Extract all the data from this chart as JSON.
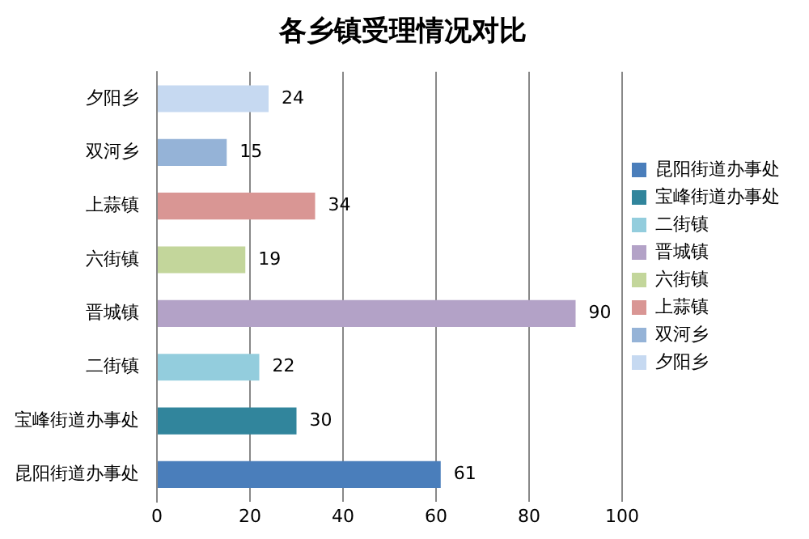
{
  "chart_data": {
    "type": "bar",
    "orientation": "horizontal",
    "title": "各乡镇受理情况对比",
    "categories": [
      "夕阳乡",
      "双河乡",
      "上蒜镇",
      "六街镇",
      "晋城镇",
      "二街镇",
      "宝峰街道办事处",
      "昆阳街道办事处"
    ],
    "series": [
      {
        "name": "昆阳街道办事处",
        "color": "#4a7ebb",
        "values": [
          null,
          null,
          null,
          null,
          null,
          null,
          null,
          61
        ]
      },
      {
        "name": "宝峰街道办事处",
        "color": "#31859c",
        "values": [
          null,
          null,
          null,
          null,
          null,
          null,
          30,
          null
        ]
      },
      {
        "name": "二街镇",
        "color": "#93cddd",
        "values": [
          null,
          null,
          null,
          null,
          null,
          22,
          null,
          null
        ]
      },
      {
        "name": "晋城镇",
        "color": "#b3a2c7",
        "values": [
          null,
          null,
          null,
          null,
          90,
          null,
          null,
          null
        ]
      },
      {
        "name": "六街镇",
        "color": "#c3d69b",
        "values": [
          null,
          null,
          null,
          19,
          null,
          null,
          null,
          null
        ]
      },
      {
        "name": "上蒜镇",
        "color": "#d99694",
        "values": [
          null,
          null,
          34,
          null,
          null,
          null,
          null,
          null
        ]
      },
      {
        "name": "双河乡",
        "color": "#95b3d7",
        "values": [
          null,
          15,
          null,
          null,
          null,
          null,
          null,
          null
        ]
      },
      {
        "name": "夕阳乡",
        "color": "#c6d9f1",
        "values": [
          24,
          null,
          null,
          null,
          null,
          null,
          null,
          null
        ]
      }
    ],
    "xlim": [
      0,
      100
    ],
    "xticks": [
      0,
      20,
      40,
      60,
      80,
      100
    ],
    "grid": "x",
    "legend": "right",
    "data_labels": true
  }
}
